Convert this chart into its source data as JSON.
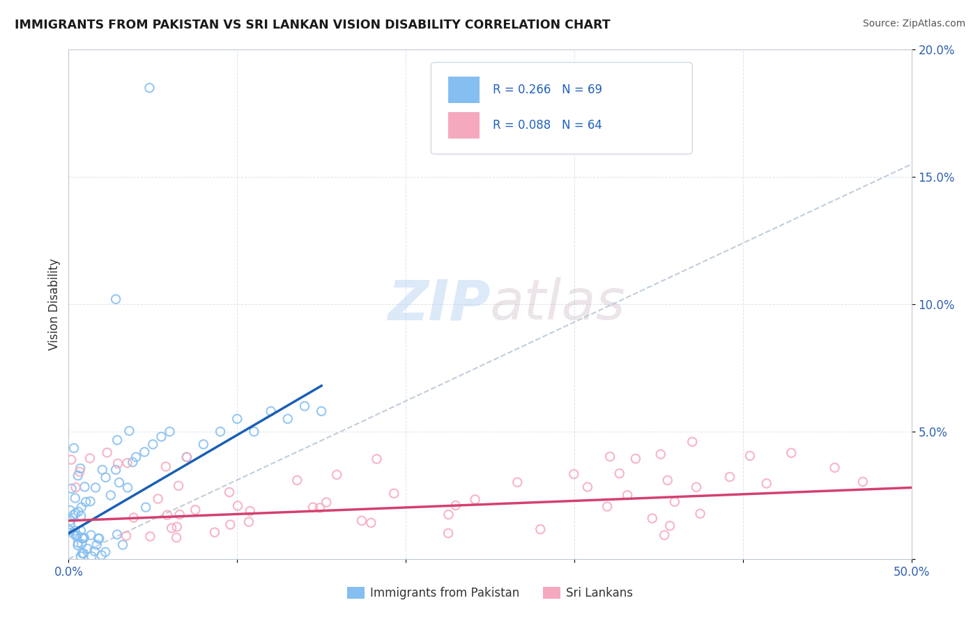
{
  "title": "IMMIGRANTS FROM PAKISTAN VS SRI LANKAN VISION DISABILITY CORRELATION CHART",
  "source": "Source: ZipAtlas.com",
  "ylabel": "Vision Disability",
  "xlim": [
    0,
    0.5
  ],
  "ylim": [
    0,
    0.2
  ],
  "pakistan_color": "#85bef0",
  "pakistan_edge": "#85bef0",
  "srilanka_color": "#f5a8be",
  "srilanka_edge": "#f5a8be",
  "pakistan_R": 0.266,
  "pakistan_N": 69,
  "srilanka_R": 0.088,
  "srilanka_N": 64,
  "pakistan_line_color": "#1a5fb4",
  "srilanka_line_color": "#d44070",
  "diag_line_color": "#b8c8d8",
  "watermark_color": "#c8daf0",
  "title_color": "#1a1a1a",
  "source_color": "#555555",
  "ylabel_color": "#333333",
  "tick_color": "#3060b0",
  "grid_color": "#d8e0ea",
  "spine_color": "#c0c8d0"
}
